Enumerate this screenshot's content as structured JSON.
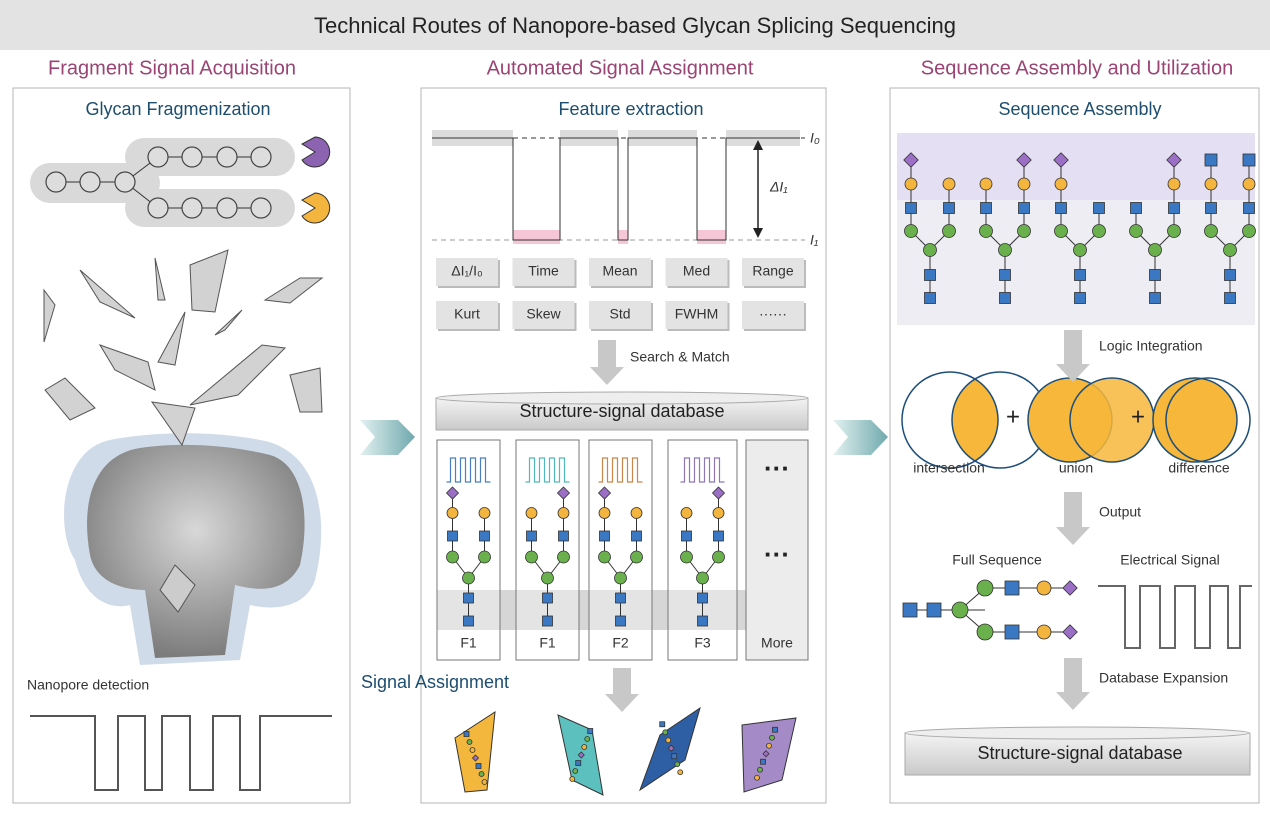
{
  "header": {
    "title": "Technical Routes of Nanopore-based Glycan Splicing Sequencing"
  },
  "panels": [
    {
      "heading": "Fragment Signal Acquisition",
      "subtitle": "Glycan Fragmenization",
      "detection_label": "Nanopore detection"
    },
    {
      "heading": "Automated Signal Assignment",
      "subtitle": "Feature extraction",
      "trace_labels": [
        "I₀",
        "ΔI₁",
        "I₁"
      ],
      "features": [
        "ΔI₁/I₀",
        "Time",
        "Mean",
        "Med",
        "Range",
        "Kurt",
        "Skew",
        "Std",
        "FWHM",
        "······"
      ],
      "search_label": "Search & Match",
      "database": "Structure-signal database",
      "cards": [
        "F1",
        "F1",
        "F2",
        "F3",
        "More"
      ],
      "card_ellipsis": [
        "···",
        "···"
      ],
      "assignment_label": "Signal Assignment"
    },
    {
      "heading": "Sequence Assembly and Utilization",
      "subtitle": "Sequence Assembly",
      "logic_label": "Logic Integration",
      "set_operations": [
        "intersection",
        "union",
        "difference"
      ],
      "operators": [
        "+",
        "+"
      ],
      "output_label": "Output",
      "full_sequence_label": "Full Sequence",
      "signal_label": "Electrical Signal",
      "expansion_label": "Database Expansion",
      "database": "Structure-signal database"
    }
  ]
}
